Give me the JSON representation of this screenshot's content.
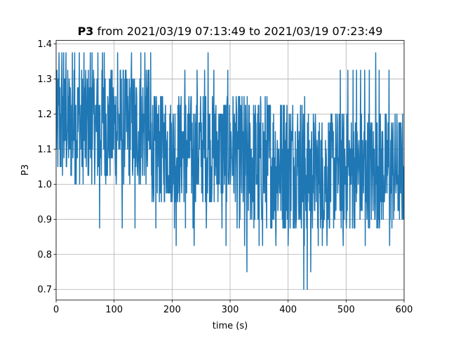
{
  "chart_data": {
    "type": "line",
    "title": {
      "bold_part": "P3",
      "rest": " from 2021/03/19 07:13:49 to 2021/03/19 07:23:49"
    },
    "xlabel": "time (s)",
    "ylabel": "P3",
    "xlim": [
      0,
      600
    ],
    "ylim": [
      0.67,
      1.41
    ],
    "xticks": [
      0,
      100,
      200,
      300,
      400,
      500,
      600
    ],
    "yticks": [
      0.7,
      0.8,
      0.9,
      1.0,
      1.1,
      1.2,
      1.3,
      1.4
    ],
    "xtick_labels": [
      "0",
      "100",
      "200",
      "300",
      "400",
      "500",
      "600"
    ],
    "ytick_labels": [
      "0.7",
      "0.8",
      "0.9",
      "1.0",
      "1.1",
      "1.2",
      "1.3",
      "1.4"
    ],
    "grid": true,
    "series": [
      {
        "color": "#1f77b4",
        "sampling_interval_s": 0.5,
        "quantization_step": 0.025,
        "band_segments": [
          {
            "x": [
              0,
              160
            ],
            "low": 1.0,
            "high": 1.325
          },
          {
            "x": [
              160,
              315
            ],
            "low": 0.95,
            "high": 1.25
          },
          {
            "x": [
              315,
              430
            ],
            "low": 0.875,
            "high": 1.25
          },
          {
            "x": [
              430,
              600
            ],
            "low": 0.875,
            "high": 1.2
          }
        ],
        "spike_points": [
          {
            "x": 5,
            "y": 1.375
          },
          {
            "x": 10,
            "y": 1.375
          },
          {
            "x": 13,
            "y": 1.375
          },
          {
            "x": 17,
            "y": 1.375
          },
          {
            "x": 28,
            "y": 1.375
          },
          {
            "x": 32,
            "y": 1.375
          },
          {
            "x": 40,
            "y": 1.375
          },
          {
            "x": 48,
            "y": 1.375
          },
          {
            "x": 59,
            "y": 1.375
          },
          {
            "x": 62,
            "y": 1.375
          },
          {
            "x": 72,
            "y": 1.375
          },
          {
            "x": 80,
            "y": 1.375
          },
          {
            "x": 83,
            "y": 1.375
          },
          {
            "x": 106,
            "y": 1.375
          },
          {
            "x": 130,
            "y": 1.375
          },
          {
            "x": 146,
            "y": 1.375
          },
          {
            "x": 153,
            "y": 1.375
          },
          {
            "x": 163,
            "y": 1.375
          },
          {
            "x": 262,
            "y": 1.375
          },
          {
            "x": 551,
            "y": 1.375
          },
          {
            "x": 75,
            "y": 0.875
          },
          {
            "x": 114,
            "y": 0.875
          },
          {
            "x": 136,
            "y": 0.875
          },
          {
            "x": 172,
            "y": 0.875
          },
          {
            "x": 204,
            "y": 0.875
          },
          {
            "x": 207,
            "y": 0.825
          },
          {
            "x": 223,
            "y": 0.875
          },
          {
            "x": 236,
            "y": 0.875
          },
          {
            "x": 238,
            "y": 0.825
          },
          {
            "x": 259,
            "y": 0.875
          },
          {
            "x": 286,
            "y": 0.875
          },
          {
            "x": 293,
            "y": 0.825
          },
          {
            "x": 312,
            "y": 0.875
          },
          {
            "x": 325,
            "y": 0.825
          },
          {
            "x": 329,
            "y": 0.75
          },
          {
            "x": 350,
            "y": 0.825
          },
          {
            "x": 356,
            "y": 0.825
          },
          {
            "x": 379,
            "y": 0.825
          },
          {
            "x": 400,
            "y": 0.825
          },
          {
            "x": 428,
            "y": 0.825
          },
          {
            "x": 427,
            "y": 0.7
          },
          {
            "x": 433,
            "y": 0.7
          },
          {
            "x": 439,
            "y": 0.75
          },
          {
            "x": 452,
            "y": 0.825
          },
          {
            "x": 459,
            "y": 0.825
          },
          {
            "x": 467,
            "y": 0.825
          },
          {
            "x": 495,
            "y": 0.825
          },
          {
            "x": 533,
            "y": 0.825
          },
          {
            "x": 575,
            "y": 0.825
          },
          {
            "x": 490,
            "y": 1.325
          },
          {
            "x": 503,
            "y": 1.325
          },
          {
            "x": 512,
            "y": 1.325
          },
          {
            "x": 518,
            "y": 1.325
          },
          {
            "x": 525,
            "y": 1.325
          },
          {
            "x": 532,
            "y": 1.325
          },
          {
            "x": 540,
            "y": 1.325
          },
          {
            "x": 557,
            "y": 1.325
          },
          {
            "x": 574,
            "y": 1.325
          },
          {
            "x": 222,
            "y": 1.325
          },
          {
            "x": 243,
            "y": 1.325
          },
          {
            "x": 256,
            "y": 1.325
          },
          {
            "x": 272,
            "y": 1.325
          },
          {
            "x": 296,
            "y": 1.325
          }
        ]
      }
    ]
  }
}
